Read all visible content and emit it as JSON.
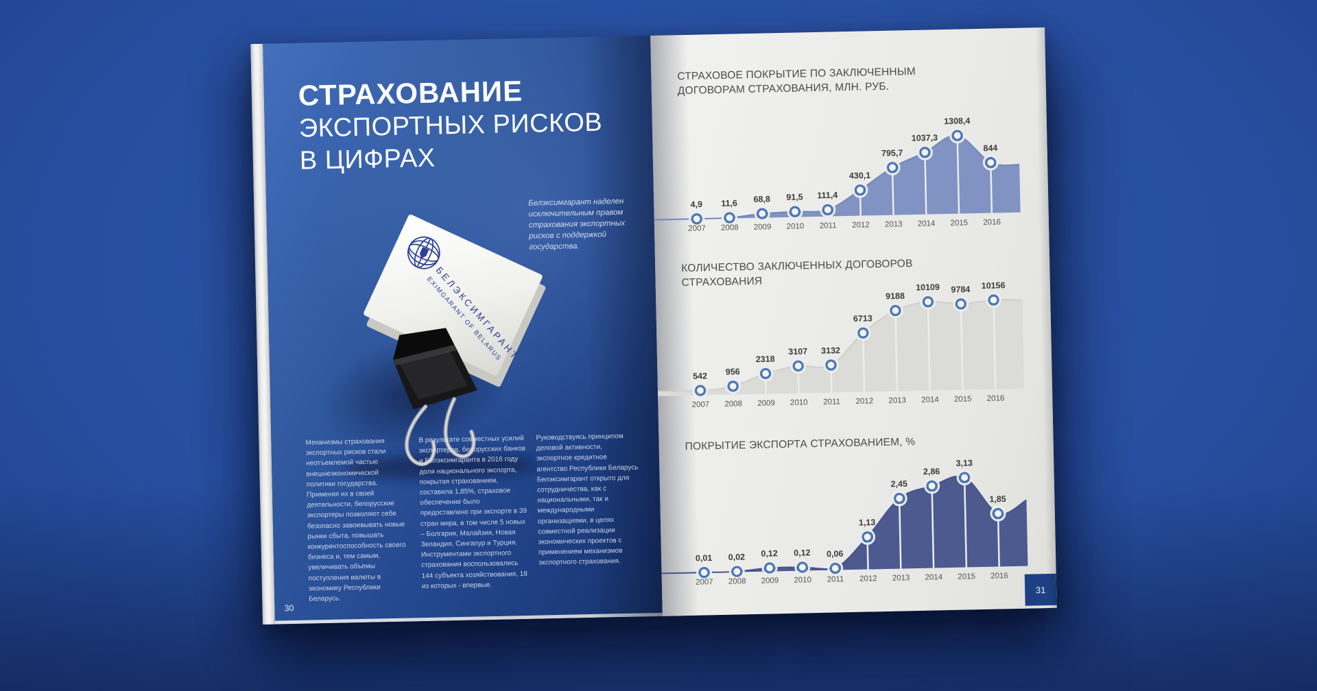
{
  "left_page": {
    "page_number": "30",
    "title": {
      "line1": "СТРАХОВАНИЕ",
      "line2": "ЭКСПОРТНЫХ РИСКОВ",
      "line3": "В ЦИФРАХ"
    },
    "callout": "Белэксимгарант наделен исключительным правом страхования экспортных рисков с поддержкой государства.",
    "card": {
      "brand_cyrillic": "БЕЛЭКСИМГАРАНТ",
      "brand_latin": "EXIMGARANT OF BELARUS"
    },
    "columns": [
      "Механизмы страхования экспортных рисков стали неотъемлемой частью внешнеэкономической политики государства. Применяя их в своей деятельности, белорусские экспортеры позволяют себе безопасно завоевывать новые рынки сбыта, повышать конкурентоспособность своего бизнеса и, тем самым, увеличивать объемы поступления валюты в экономику Республики Беларусь.",
      "В результате совместных усилий экспортеров, белорусских банков и Белэксимгаранта в 2016 году доля национального экспорта, покрытая страхованием, составила 1,85%, страховое обеспечение было предоставлено при экспорте в 39 стран мира, в том числе 5 новых – Болгария, Малайзия, Новая Зеландия, Сингапур и Турция. Инструментами экспортного страхования воспользовались 144 субъекта хозяйствования, 18 из которых - впервые.",
      "Руководствуясь принципом деловой активности, экспортное кредитное агентство Республики Беларусь Белэксимгарант открыто для сотрудничества, как с национальными, так и международными организациями, в целях совместной реализации экономических проектов с применением механизмов экспортного страхования."
    ]
  },
  "right_page": {
    "page_number": "31"
  },
  "colors": {
    "stem": "#ececea",
    "marker_fill": "#f2f2f0",
    "marker_ring": "#4a77b6",
    "label": "#3b3b3b",
    "year": "#545454",
    "brand_blue": "#2b3f94",
    "page_number_box": "#1d4085"
  },
  "chart_data": [
    {
      "type": "area",
      "title": "СТРАХОВОЕ ПОКРЫТИЕ ПО ЗАКЛЮЧЕННЫМ ДОГОВОРАМ СТРАХОВАНИЯ, МЛН. РУБ.",
      "categories": [
        "2007",
        "2008",
        "2009",
        "2010",
        "2011",
        "2012",
        "2013",
        "2014",
        "2015",
        "2016"
      ],
      "values": [
        4.9,
        11.6,
        68.8,
        91.5,
        111.4,
        430.1,
        795.7,
        1037.3,
        1308.4,
        844
      ],
      "labels": [
        "4,9",
        "11,6",
        "68,8",
        "91,5",
        "111,4",
        "430,1",
        "795,7",
        "1037,3",
        "1308,4",
        "844"
      ],
      "tail_value": 800,
      "area_color": "#8093c3",
      "line_color": "#7487ba",
      "grid": false,
      "legend": false
    },
    {
      "type": "area",
      "title": "КОЛИЧЕСТВО ЗАКЛЮЧЕННЫХ ДОГОВОРОВ СТРАХОВАНИЯ",
      "categories": [
        "2007",
        "2008",
        "2009",
        "2010",
        "2011",
        "2012",
        "2013",
        "2014",
        "2015",
        "2016"
      ],
      "values": [
        542,
        956,
        2318,
        3107,
        3132,
        6713,
        9188,
        10109,
        9784,
        10156
      ],
      "labels": [
        "542",
        "956",
        "2318",
        "3107",
        "3132",
        "6713",
        "9188",
        "10109",
        "9784",
        "10156"
      ],
      "tail_value": 10100,
      "area_color": "#dbdbd8",
      "line_color": "#cfcfcc",
      "grid": false,
      "legend": false
    },
    {
      "type": "area",
      "title": "ПОКРЫТИЕ ЭКСПОРТА СТРАХОВАНИЕМ, %",
      "categories": [
        "2007",
        "2008",
        "2009",
        "2010",
        "2011",
        "2012",
        "2013",
        "2014",
        "2015",
        "2016"
      ],
      "values": [
        0.01,
        0.02,
        0.12,
        0.12,
        0.06,
        1.13,
        2.45,
        2.86,
        3.13,
        1.85
      ],
      "labels": [
        "0,01",
        "0,02",
        "0,12",
        "0,12",
        "0,06",
        "1,13",
        "2,45",
        "2,86",
        "3,13",
        "1,85"
      ],
      "tail_value": 2.3,
      "area_color": "#4d5a90",
      "line_color": "#46538a",
      "grid": false,
      "legend": false
    }
  ]
}
